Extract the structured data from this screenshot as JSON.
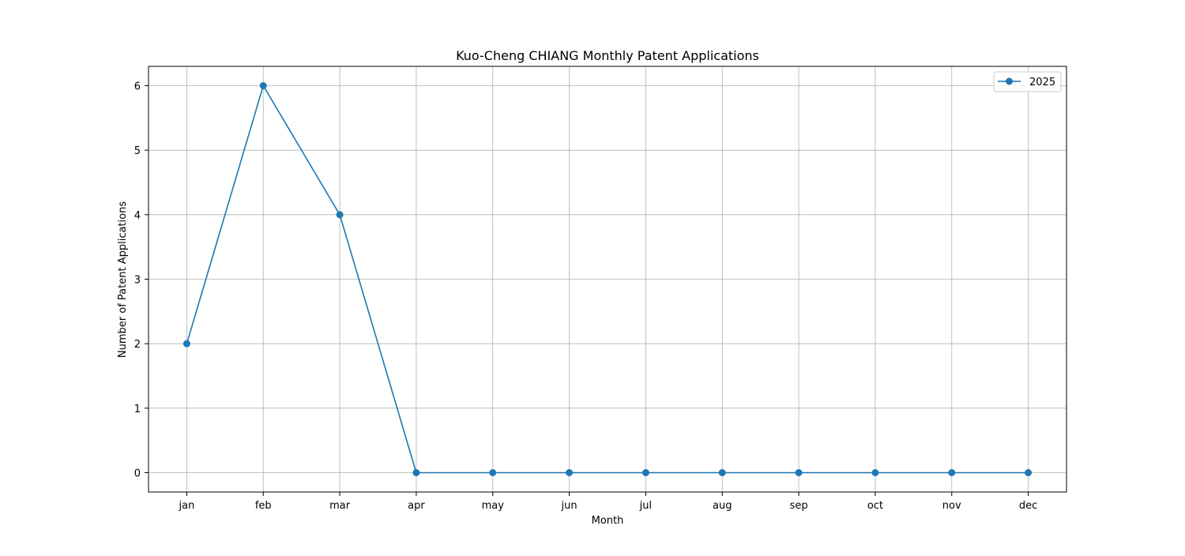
{
  "chart_data": {
    "type": "line",
    "title": "Kuo-Cheng CHIANG Monthly Patent Applications",
    "xlabel": "Month",
    "ylabel": "Number of Patent Applications",
    "categories": [
      "jan",
      "feb",
      "mar",
      "apr",
      "may",
      "jun",
      "jul",
      "aug",
      "sep",
      "oct",
      "nov",
      "dec"
    ],
    "series": [
      {
        "name": "2025",
        "values": [
          2,
          6,
          4,
          0,
          0,
          0,
          0,
          0,
          0,
          0,
          0,
          0
        ],
        "color": "#1f77b4",
        "marker": "circle"
      }
    ],
    "ylim": [
      -0.3,
      6.3
    ],
    "yticks": [
      0,
      1,
      2,
      3,
      4,
      5,
      6
    ],
    "grid": true,
    "legend_position": "top-right"
  }
}
